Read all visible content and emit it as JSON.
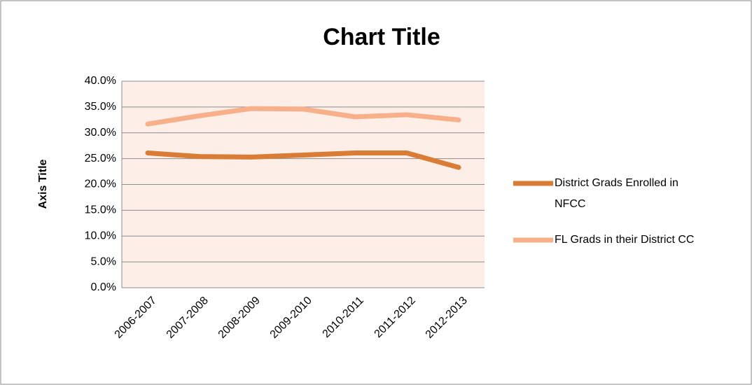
{
  "chart_data": {
    "type": "line",
    "title": "Chart Title",
    "y_label": "Axis Title",
    "categories": [
      "2006-2007",
      "2007-2008",
      "2008-2009",
      "2009-2010",
      "2010-2011",
      "2011-2012",
      "2012-2013"
    ],
    "series": [
      {
        "name": "District Grads Enrolled in NFCC",
        "color": "#d97c35",
        "values": [
          26.1,
          25.4,
          25.3,
          25.7,
          26.1,
          26.1,
          23.3
        ]
      },
      {
        "name": "FL Grads in their District CC",
        "color": "#f7b08a",
        "values": [
          31.7,
          33.3,
          34.7,
          34.6,
          33.1,
          33.5,
          32.5
        ]
      }
    ],
    "ylim": [
      0,
      40
    ],
    "yticks": [
      {
        "value": 0,
        "label": "0.0%"
      },
      {
        "value": 5,
        "label": "5.0%"
      },
      {
        "value": 10,
        "label": "10.0%"
      },
      {
        "value": 15,
        "label": "15.0%"
      },
      {
        "value": 20,
        "label": "20.0%"
      },
      {
        "value": 25,
        "label": "25.0%"
      },
      {
        "value": 30,
        "label": "30.0%"
      },
      {
        "value": 35,
        "label": "35.0%"
      },
      {
        "value": 40,
        "label": "40.0%"
      }
    ],
    "grid": true,
    "legend": "right"
  }
}
